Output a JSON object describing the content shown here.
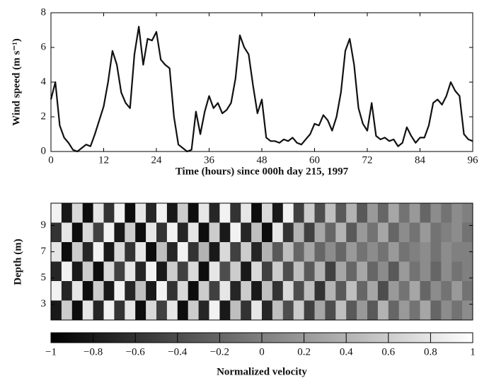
{
  "chart_data": [
    {
      "type": "line",
      "ylabel": "Wind speed (m s⁻¹)",
      "xlabel": "Time (hours) since 000h day 215, 1997",
      "x": [
        0,
        1,
        2,
        3,
        4,
        5,
        6,
        7,
        8,
        9,
        10,
        11,
        12,
        13,
        14,
        15,
        16,
        17,
        18,
        19,
        20,
        21,
        22,
        23,
        24,
        25,
        26,
        27,
        28,
        29,
        30,
        31,
        32,
        33,
        34,
        35,
        36,
        37,
        38,
        39,
        40,
        41,
        42,
        43,
        44,
        45,
        46,
        47,
        48,
        49,
        50,
        51,
        52,
        53,
        54,
        55,
        56,
        57,
        58,
        59,
        60,
        61,
        62,
        63,
        64,
        65,
        66,
        67,
        68,
        69,
        70,
        71,
        72,
        73,
        74,
        75,
        76,
        77,
        78,
        79,
        80,
        81,
        82,
        83,
        84,
        85,
        86,
        87,
        88,
        89,
        90,
        91,
        92,
        93,
        94,
        95,
        96
      ],
      "series": [
        {
          "color": "#111111",
          "values": [
            3.0,
            4.0,
            1.5,
            0.8,
            0.5,
            0.1,
            0.0,
            0.2,
            0.4,
            0.3,
            1.0,
            1.8,
            2.6,
            4.0,
            5.8,
            5.0,
            3.4,
            2.8,
            2.5,
            5.6,
            7.2,
            5.0,
            6.5,
            6.4,
            6.9,
            5.3,
            5.0,
            4.8,
            2.0,
            0.4,
            0.2,
            0.0,
            0.1,
            2.3,
            1.0,
            2.3,
            3.2,
            2.5,
            2.8,
            2.2,
            2.4,
            2.8,
            4.2,
            6.7,
            6.0,
            5.6,
            3.8,
            2.2,
            3.0,
            0.8,
            0.6,
            0.6,
            0.5,
            0.7,
            0.6,
            0.8,
            0.5,
            0.4,
            0.7,
            1.0,
            1.6,
            1.5,
            2.1,
            1.8,
            1.2,
            2.0,
            3.4,
            5.8,
            6.5,
            5.0,
            2.5,
            1.6,
            1.2,
            2.8,
            0.9,
            0.7,
            0.8,
            0.6,
            0.7,
            0.3,
            0.5,
            1.4,
            0.9,
            0.5,
            0.8,
            0.8,
            1.5,
            2.8,
            3.0,
            2.7,
            3.2,
            4.0,
            3.5,
            3.2,
            1.0,
            0.7,
            0.6
          ]
        }
      ],
      "xlim": [
        0,
        96
      ],
      "xticks": [
        0,
        12,
        24,
        36,
        48,
        60,
        72,
        84,
        96
      ],
      "ylim": [
        0,
        8
      ],
      "yticks": [
        0,
        2,
        4,
        6,
        8
      ]
    },
    {
      "type": "heatmap",
      "ylabel": "Depth (m)",
      "xlim": [
        0,
        96
      ],
      "ylim": [
        10.7,
        1.8
      ],
      "yticks": [
        3,
        5,
        7,
        9
      ],
      "zlim": [
        -1,
        1
      ],
      "z": [
        [
          0.9,
          -0.8,
          0.7,
          -0.9,
          0.8,
          -0.6,
          0.9,
          -0.9,
          0.8,
          -0.7,
          0.9,
          -0.8,
          0.6,
          -0.9,
          0.8,
          -0.7,
          0.9,
          -0.6,
          0.8,
          -0.9,
          0.7,
          -0.8,
          0.9,
          -0.5,
          0.6,
          -0.4,
          0.5,
          -0.3,
          0.4,
          -0.3,
          0.2,
          -0.2,
          0.3,
          -0.1,
          0.2,
          -0.2,
          0.1,
          -0.1,
          0.1,
          0.0
        ],
        [
          -0.6,
          0.8,
          -0.9,
          0.7,
          -0.5,
          0.9,
          -0.8,
          0.6,
          -0.9,
          0.8,
          -0.6,
          0.9,
          -0.7,
          0.8,
          -0.9,
          0.6,
          -0.8,
          0.9,
          -0.7,
          0.5,
          -0.9,
          0.8,
          -0.6,
          0.4,
          -0.5,
          0.3,
          -0.2,
          0.4,
          -0.3,
          0.2,
          -0.1,
          0.3,
          -0.2,
          0.1,
          -0.1,
          0.2,
          -0.1,
          0.0,
          0.1,
          -0.1
        ],
        [
          0.8,
          -0.9,
          0.6,
          -0.7,
          0.9,
          -0.8,
          0.7,
          -0.6,
          0.8,
          -0.9,
          0.5,
          -0.7,
          0.9,
          -0.6,
          0.4,
          -0.8,
          0.7,
          -0.5,
          0.6,
          -0.7,
          0.4,
          -0.3,
          0.5,
          -0.2,
          0.3,
          -0.2,
          0.1,
          -0.2,
          0.2,
          -0.1,
          0.1,
          -0.1,
          0.2,
          -0.1,
          0.0,
          0.1,
          -0.1,
          0.1,
          0.0,
          0.0
        ],
        [
          -0.7,
          0.9,
          -0.8,
          0.6,
          -0.9,
          0.7,
          -0.5,
          0.8,
          -0.7,
          0.9,
          -0.8,
          0.6,
          -0.5,
          0.7,
          -0.9,
          0.8,
          -0.4,
          0.6,
          -0.8,
          0.7,
          -0.5,
          0.6,
          -0.4,
          0.5,
          -0.3,
          0.4,
          -0.5,
          0.3,
          -0.2,
          0.3,
          -0.2,
          0.1,
          -0.3,
          0.2,
          -0.1,
          0.1,
          -0.2,
          0.1,
          -0.1,
          0.0
        ],
        [
          0.9,
          -0.7,
          0.8,
          -0.9,
          0.6,
          -0.8,
          0.9,
          -0.7,
          0.5,
          -0.8,
          0.9,
          -0.6,
          0.7,
          -0.9,
          0.6,
          -0.5,
          0.8,
          -0.7,
          0.6,
          -0.8,
          0.5,
          -0.6,
          0.7,
          -0.4,
          0.5,
          -0.6,
          0.4,
          -0.3,
          0.5,
          -0.2,
          0.3,
          -0.4,
          0.2,
          -0.1,
          0.3,
          -0.2,
          0.1,
          -0.1,
          0.2,
          -0.1
        ],
        [
          -0.8,
          0.6,
          -0.9,
          0.8,
          -0.7,
          0.9,
          -0.6,
          0.8,
          -0.9,
          0.7,
          -0.5,
          0.8,
          -0.9,
          0.6,
          -0.7,
          0.9,
          -0.8,
          0.5,
          -0.6,
          0.8,
          -0.7,
          0.5,
          -0.4,
          0.6,
          -0.5,
          0.3,
          -0.4,
          0.5,
          -0.3,
          0.2,
          -0.3,
          0.4,
          -0.2,
          0.2,
          -0.1,
          0.3,
          -0.2,
          0.1,
          -0.1,
          0.1
        ]
      ],
      "colorbar_label": "Normalized velocity",
      "cticks": [
        {
          "value": -1,
          "label": "−1"
        },
        {
          "value": -0.8,
          "label": "−0.8"
        },
        {
          "value": -0.6,
          "label": "−0.6"
        },
        {
          "value": -0.4,
          "label": "−0.4"
        },
        {
          "value": -0.2,
          "label": "−0.2"
        },
        0,
        0.2,
        0.4,
        0.6,
        0.8,
        1
      ]
    }
  ]
}
